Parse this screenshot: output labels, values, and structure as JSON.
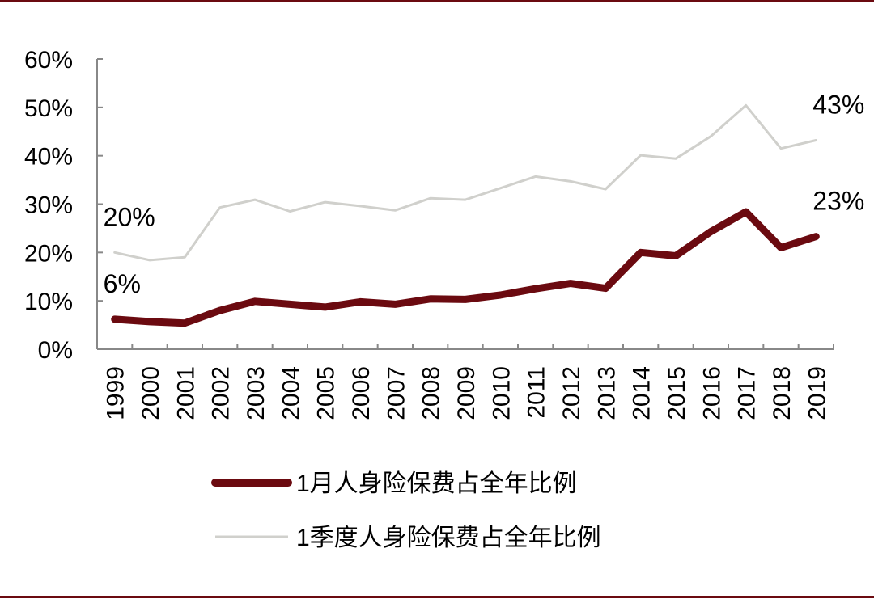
{
  "chart_data": {
    "type": "line",
    "x": [
      "1999",
      "2000",
      "2001",
      "2002",
      "2003",
      "2004",
      "2005",
      "2006",
      "2007",
      "2008",
      "2009",
      "2010",
      "2011",
      "2012",
      "2013",
      "2014",
      "2015",
      "2016",
      "2017",
      "2018",
      "2019"
    ],
    "ylim": [
      0,
      0.6
    ],
    "yticks": [
      "0%",
      "10%",
      "20%",
      "30%",
      "40%",
      "50%",
      "60%"
    ],
    "grid": false,
    "legend_position": "bottom",
    "series": [
      {
        "name": "1月人身险保费占全年比例",
        "color": "#6b0a10",
        "values": [
          0.062,
          0.057,
          0.054,
          0.08,
          0.099,
          0.093,
          0.087,
          0.098,
          0.093,
          0.104,
          0.103,
          0.112,
          0.125,
          0.136,
          0.126,
          0.2,
          0.193,
          0.243,
          0.284,
          0.21,
          0.233
        ]
      },
      {
        "name": "1季度人身险保费占全年比例",
        "color": "#d0d0cc",
        "values": [
          0.2,
          0.184,
          0.19,
          0.293,
          0.309,
          0.285,
          0.304,
          0.296,
          0.287,
          0.312,
          0.309,
          0.333,
          0.357,
          0.347,
          0.331,
          0.401,
          0.394,
          0.44,
          0.504,
          0.415,
          0.432
        ]
      }
    ],
    "annotations": [
      {
        "series": 1,
        "index": 0,
        "text": "20%"
      },
      {
        "series": 0,
        "index": 0,
        "text": "6%"
      },
      {
        "series": 1,
        "index": 20,
        "text": "43%"
      },
      {
        "series": 0,
        "index": 20,
        "text": "23%"
      }
    ]
  }
}
